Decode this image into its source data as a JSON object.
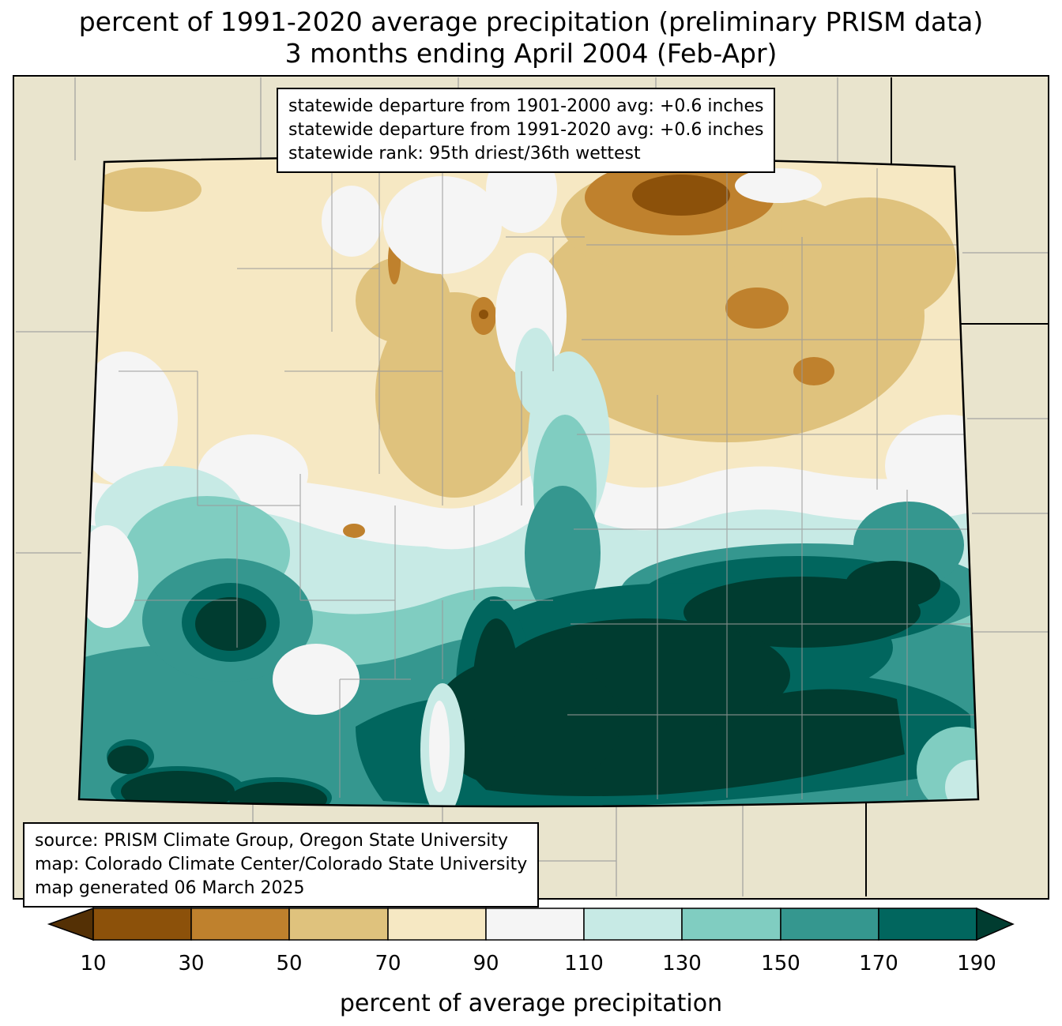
{
  "title": {
    "line1": "percent of 1991-2020 average precipitation (preliminary PRISM data)",
    "line2": "3 months ending April 2004 (Feb-Apr)"
  },
  "stats_box": {
    "lines": [
      "statewide departure from 1901-2000 avg: +0.6 inches",
      "statewide departure from 1991-2020 avg: +0.6 inches",
      "statewide rank: 95th driest/36th wettest"
    ]
  },
  "source_box": {
    "lines": [
      "source: PRISM Climate Group, Oregon State University",
      "map: Colorado Climate Center/Colorado State University",
      "map generated 06 March 2025"
    ]
  },
  "colorbar": {
    "label": "percent of average precipitation",
    "ticks": [
      "10",
      "30",
      "50",
      "70",
      "90",
      "110",
      "130",
      "150",
      "170",
      "190"
    ],
    "segments": [
      "#8c510a",
      "#bf812d",
      "#dfc27d",
      "#f6e8c3",
      "#f5f5f5",
      "#c7eae5",
      "#80cdc1",
      "#35978f",
      "#01665e"
    ],
    "arrow_left": "#543005",
    "arrow_right": "#003c30"
  },
  "palette": {
    "bg": "#e9e4cd",
    "w": "#f5f5f5",
    "b90": "#f6e8c3",
    "b70": "#dfc27d",
    "b50": "#bf812d",
    "b30": "#8c510a",
    "b10": "#543005",
    "t130": "#c7eae5",
    "t150": "#80cdc1",
    "t170": "#35978f",
    "t190": "#01665e",
    "t190p": "#003c30",
    "county": "#9a9a9a",
    "state": "#000000"
  }
}
